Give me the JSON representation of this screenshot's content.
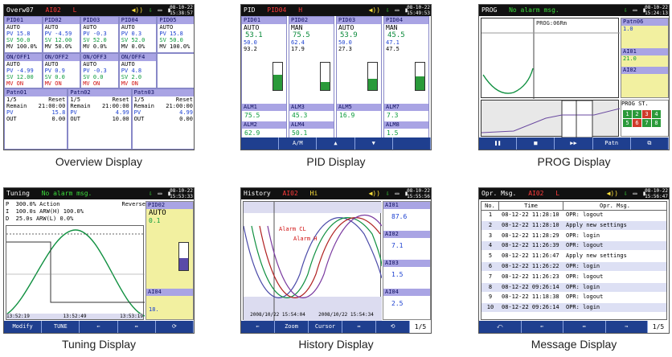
{
  "panels": {
    "overview": {
      "caption": "Overview Display",
      "title": "Overw07",
      "alarm": "AI02",
      "alarm_tag": "L",
      "date": "08-10-22",
      "time": "15:38:57",
      "loops_top": [
        {
          "name": "PID01",
          "mode": "AUTO",
          "pv": "15.8",
          "sv": "50.0",
          "mv": "100.0%"
        },
        {
          "name": "PID02",
          "mode": "AUTO",
          "pv": "-4.59",
          "sv": "12.00",
          "mv": "50.0%"
        },
        {
          "name": "PID03",
          "mode": "AUTO",
          "pv": "-0.3",
          "sv": "52.0",
          "mv": "0.0%"
        },
        {
          "name": "PID04",
          "mode": "AUTO",
          "pv": "0.3",
          "sv": "52.0",
          "mv": "0.0%"
        },
        {
          "name": "PID05",
          "mode": "AUTO",
          "pv": "15.8",
          "sv": "50.0",
          "mv": "100.0%"
        }
      ],
      "loops_mid": [
        {
          "name": "ON/OFF1",
          "mode": "AUTO",
          "pv": "-4.99",
          "sv": "12.00",
          "mv": "ON"
        },
        {
          "name": "ON/OFF2",
          "mode": "AUTO",
          "pv": "0.9",
          "sv": "0.0",
          "mv": "ON"
        },
        {
          "name": "ON/OFF3",
          "mode": "AUTO",
          "pv": "-0.3",
          "sv": "0.0",
          "mv": "ON"
        },
        {
          "name": "ON/OFF4",
          "mode": "AUTO",
          "pv": "4.8",
          "sv": "2.0",
          "mv": "ON"
        }
      ],
      "patterns": [
        {
          "name": "Patn01",
          "step": "1/5",
          "reset": "Reset",
          "remain": "21:00:00",
          "pv": "15.8",
          "out": "0.00"
        },
        {
          "name": "Patn02",
          "step": "1/5",
          "reset": "Reset",
          "remain": "21:00:00",
          "pv": "4.99",
          "out": "10.00"
        },
        {
          "name": "Patn03",
          "step": "1/5",
          "reset": "Reset",
          "remain": "21:00:00",
          "pv": "4.99",
          "out": "0.00"
        }
      ],
      "lbl_remain": "Remain",
      "lbl_pv": "PV",
      "lbl_out": "OUT"
    },
    "pid": {
      "caption": "PID Display",
      "title": "PID",
      "alarm": "PID04",
      "alarm_tag": "H",
      "date": "08-10-22",
      "time": "15:49:53",
      "columns": [
        {
          "name": "PID01",
          "mode": "AUTO",
          "pv": "53.1",
          "sv": "50.0",
          "mv": "93.2",
          "alarm_a": "ALM1",
          "aval": "75.5",
          "alarm_b": "ALM2",
          "bval": "62.9",
          "fill": 0.55
        },
        {
          "name": "PID02",
          "mode": "MAN",
          "pv": "75.5",
          "sv": "62.4",
          "mv": "17.9",
          "alarm_a": "ALM3",
          "aval": "45.3",
          "alarm_b": "ALM4",
          "bval": "50.1",
          "fill": 0.3
        },
        {
          "name": "PID03",
          "mode": "AUTO",
          "pv": "53.9",
          "sv": "50.0",
          "mv": "27.3",
          "alarm_a": "ALM5",
          "aval": "16.9",
          "alarm_b": "",
          "bval": "",
          "fill": 0.4
        },
        {
          "name": "PID04",
          "mode": "MAN",
          "pv": "45.5",
          "sv": "47.1",
          "mv": "47.5",
          "alarm_a": "ALM7",
          "aval": "7.3",
          "alarm_b": "ALM8",
          "bval": "1.5",
          "fill": 0.5
        }
      ],
      "keys": [
        "",
        "A/M",
        "▲",
        "▼",
        ""
      ]
    },
    "prog": {
      "caption": "PROG Display",
      "title": "PROG",
      "status": "No alarm msg.",
      "date": "08-10-22",
      "time": "15:24:13",
      "chart_label": "PROG:06Rm",
      "side_top": "Patn06",
      "side_vals": [
        "1.0",
        "AI01",
        "21.0",
        "AI02"
      ],
      "prog_label": "PROG ST.",
      "prog_cells": [
        "1",
        "2",
        "3",
        "4",
        "5",
        "6",
        "7",
        "8"
      ],
      "keys": [
        "❚❚",
        "■",
        "▶▶",
        "Patn",
        "⧉"
      ]
    },
    "tuning": {
      "caption": "Tuning Display",
      "title": "Tuning",
      "status": "No alarm msg.",
      "date": "08-10-22",
      "time": "15:53:33",
      "p_label": "P",
      "p_val": "300.0%",
      "p_mode": "Action",
      "p_dir": "Reverse",
      "i_label": "I",
      "i_val": "100.0s",
      "i_ext": "ARW(H)",
      "i_ext_val": "100.0%",
      "d_label": "D",
      "d_val": "25.0s",
      "d_ext": "ARW(L)",
      "d_ext_val": "0.0%",
      "side_name": "PID02",
      "side_mode": "AUTO",
      "side_pv": "0.1",
      "side_alarm": "AI04",
      "side_val": "18.",
      "x_ticks": [
        "13:52:19",
        "13:52:49",
        "13:53:19"
      ],
      "keys": [
        "Modify",
        "TUNE",
        "⇐",
        "⇔",
        "⟳"
      ]
    },
    "history": {
      "caption": "History Display",
      "title": "History",
      "alarm": "AI02",
      "alarm_tag": "Hi",
      "date": "08-10-22",
      "time": "15:55:56",
      "annot1": "Alarm CL",
      "annot2": "Alarm H",
      "side_items": [
        {
          "name": "AI01",
          "value": "87.6"
        },
        {
          "name": "AI02",
          "value": "7.1"
        },
        {
          "name": "AI03",
          "value": "1.5"
        },
        {
          "name": "AI04",
          "value": "2.5"
        }
      ],
      "x_ticks": [
        "2008/10/22 15:54:04",
        "2008/10/22 15:54:34"
      ],
      "keys": [
        "⇐",
        "Zoom",
        "Cursor",
        "⇔",
        "⟲"
      ],
      "page": "1/5"
    },
    "message": {
      "caption": "Message Display",
      "title": "Opr. Msg.",
      "alarm": "AI02",
      "alarm_tag": "L",
      "date": "08-10-22",
      "time": "15:56:47",
      "col_no": "No.",
      "col_time": "Time",
      "col_msg": "Opr. Msg.",
      "rows": [
        {
          "no": "1",
          "time": "08-12-22 11:28:10",
          "msg": "OPR: logout"
        },
        {
          "no": "2",
          "time": "08-12-22 11:28:10",
          "msg": "Apply new settings"
        },
        {
          "no": "3",
          "time": "08-12-22 11:28:29",
          "msg": "OPR: login"
        },
        {
          "no": "4",
          "time": "08-12-22 11:26:39",
          "msg": "OPR: logout"
        },
        {
          "no": "5",
          "time": "08-12-22 11:26:47",
          "msg": "Apply new settings"
        },
        {
          "no": "6",
          "time": "08-12-22 11:26:22",
          "msg": "OPR: login"
        },
        {
          "no": "7",
          "time": "08-12-22 11:26:23",
          "msg": "OPR: logout"
        },
        {
          "no": "8",
          "time": "08-12-22 09:26:14",
          "msg": "OPR: login"
        },
        {
          "no": "9",
          "time": "08-12-22 11:18:38",
          "msg": "OPR: logout"
        },
        {
          "no": "10",
          "time": "08-12-22 09:26:14",
          "msg": "OPR: login"
        }
      ],
      "keys": [
        "⤺",
        "⇐",
        "⇔",
        "⇒"
      ],
      "page": "1/5"
    }
  }
}
